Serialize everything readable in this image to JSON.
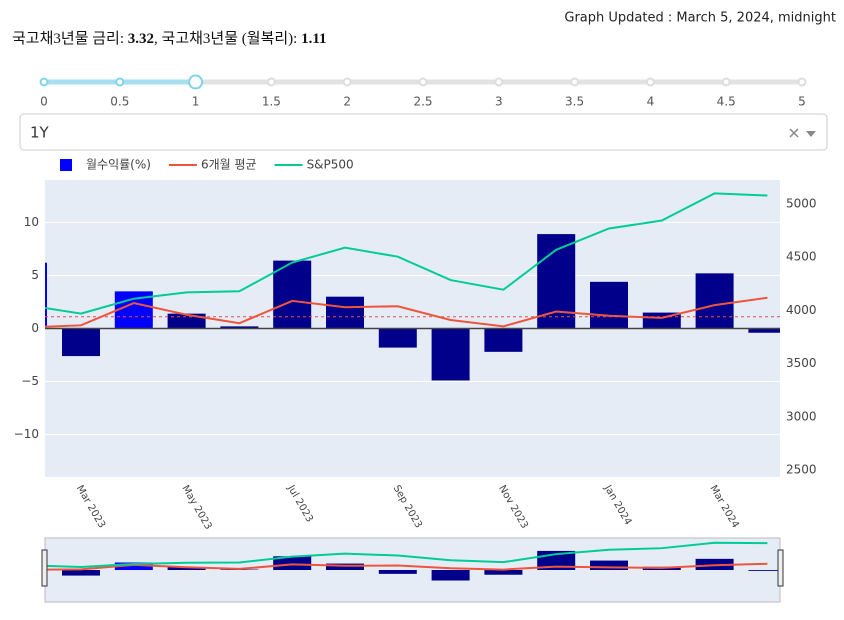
{
  "header": {
    "updated": "Graph Updated : March 5, 2024, midnight",
    "rate_label": "국고채3년물 금리:",
    "rate": 3.32,
    "monthly_label": ", 국고채3년물 (월복리):",
    "monthly_rate": 1.11
  },
  "slider": {
    "min": 0,
    "max": 5,
    "value": 1,
    "ticks": [
      0,
      0.5,
      1,
      1.5,
      2,
      2.5,
      3,
      3.5,
      4,
      4.5,
      5
    ]
  },
  "dropdown": {
    "value": "1Y"
  },
  "chart_data": {
    "type": "bar",
    "categories": [
      null,
      "Mar 2023",
      null,
      "May 2023",
      null,
      "Jul 2023",
      null,
      "Sep 2023",
      null,
      "Nov 2023",
      null,
      "Jan 2024",
      null,
      "Mar 2024",
      null
    ],
    "series": [
      {
        "name": "월수익률(%)",
        "type": "bar",
        "color": "#0000ff",
        "colors": [
          "#0000ff",
          "#00008b",
          "#0000ff",
          "#00008b",
          "#00008b",
          "#00008b",
          "#00008b",
          "#00008b",
          "#00008b",
          "#00008b",
          "#00008b",
          "#00008b",
          "#00008b",
          "#00008b",
          "#00008b"
        ],
        "values": [
          6.2,
          -2.6,
          3.5,
          1.4,
          0.2,
          6.4,
          3.0,
          -1.8,
          -4.9,
          -2.2,
          8.9,
          4.4,
          1.5,
          5.2,
          -0.4
        ]
      },
      {
        "name": "6개월 평균",
        "type": "line",
        "color": "#ef553b",
        "values": [
          0.1,
          0.3,
          2.4,
          1.3,
          0.5,
          2.6,
          2.0,
          2.1,
          0.8,
          0.2,
          1.6,
          1.2,
          1.0,
          2.2,
          2.9
        ]
      },
      {
        "name": "S&P500",
        "type": "line",
        "color": "#00cc96",
        "axis": "y2",
        "values": [
          4047,
          3970,
          4110,
          4170,
          4180,
          4450,
          4590,
          4505,
          4285,
          4195,
          4570,
          4770,
          4845,
          5100,
          5080
        ]
      }
    ],
    "ylim": [
      -14,
      14
    ],
    "yticks": [
      {
        "value": -10,
        "label": "−10"
      },
      {
        "value": -5,
        "label": "−5"
      },
      0,
      5,
      10
    ],
    "y2lim": [
      2434,
      5226
    ],
    "y2ticks": [
      2500,
      3000,
      3500,
      4000,
      4500,
      5000
    ],
    "grid": true,
    "legend": "top"
  }
}
